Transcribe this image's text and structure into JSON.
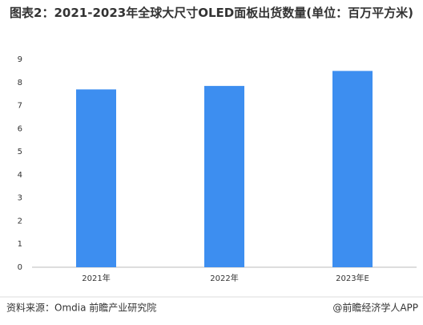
{
  "chart_data": {
    "type": "bar",
    "title": "图表2：2021-2023年全球大尺寸OLED面板出货数量(单位：百万平方米)",
    "categories": [
      "2021年",
      "2022年",
      "2023年E"
    ],
    "values": [
      7.7,
      7.85,
      8.5
    ],
    "color": "#3d8ef0",
    "ylim": [
      0,
      9
    ],
    "yticks": [
      0,
      1,
      2,
      3,
      4,
      5,
      6,
      7,
      8,
      9
    ],
    "grid": false,
    "source": "资料来源：Omdia 前瞻产业研究院",
    "credit": "@前瞻经济学人APP"
  }
}
